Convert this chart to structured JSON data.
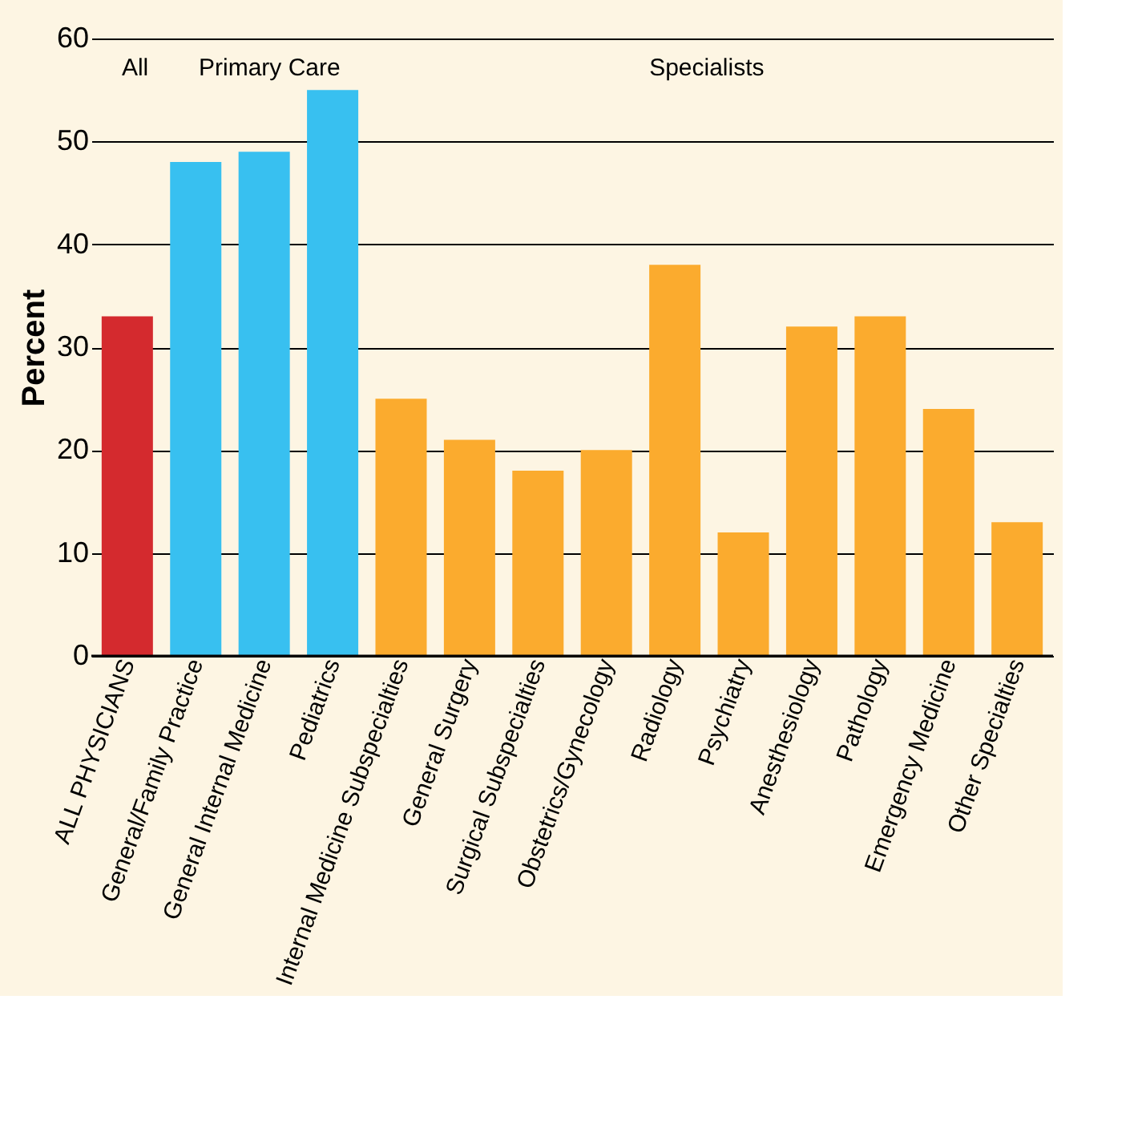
{
  "chart_data": {
    "type": "bar",
    "ylabel": "Percent",
    "categories": [
      "ALL PHYSICIANS",
      "General/Family Practice",
      "General Internal Medicine",
      "Pediatrics",
      "Internal Medicine Subspecialties",
      "General Surgery",
      "Surgical Subspecialties",
      "Obstetrics/Gynecology",
      "Radiology",
      "Psychiatry",
      "Anesthesiology",
      "Pathology",
      "Emergency Medicine",
      "Other Specialties"
    ],
    "values": [
      33,
      48,
      49,
      55,
      25,
      21,
      18,
      20,
      38,
      12,
      32,
      33,
      24,
      13
    ],
    "colors": [
      "#d42a2e",
      "#38c0f0",
      "#38c0f0",
      "#38c0f0",
      "#fbab2e",
      "#fbab2e",
      "#fbab2e",
      "#fbab2e",
      "#fbab2e",
      "#fbab2e",
      "#fbab2e",
      "#fbab2e",
      "#fbab2e",
      "#fbab2e"
    ],
    "annotations": [
      "All",
      "Primary Care",
      "Specialists"
    ],
    "ylim": [
      0,
      60
    ],
    "yticks": [
      0,
      10,
      20,
      30,
      40,
      50,
      60
    ],
    "grid": "y"
  }
}
